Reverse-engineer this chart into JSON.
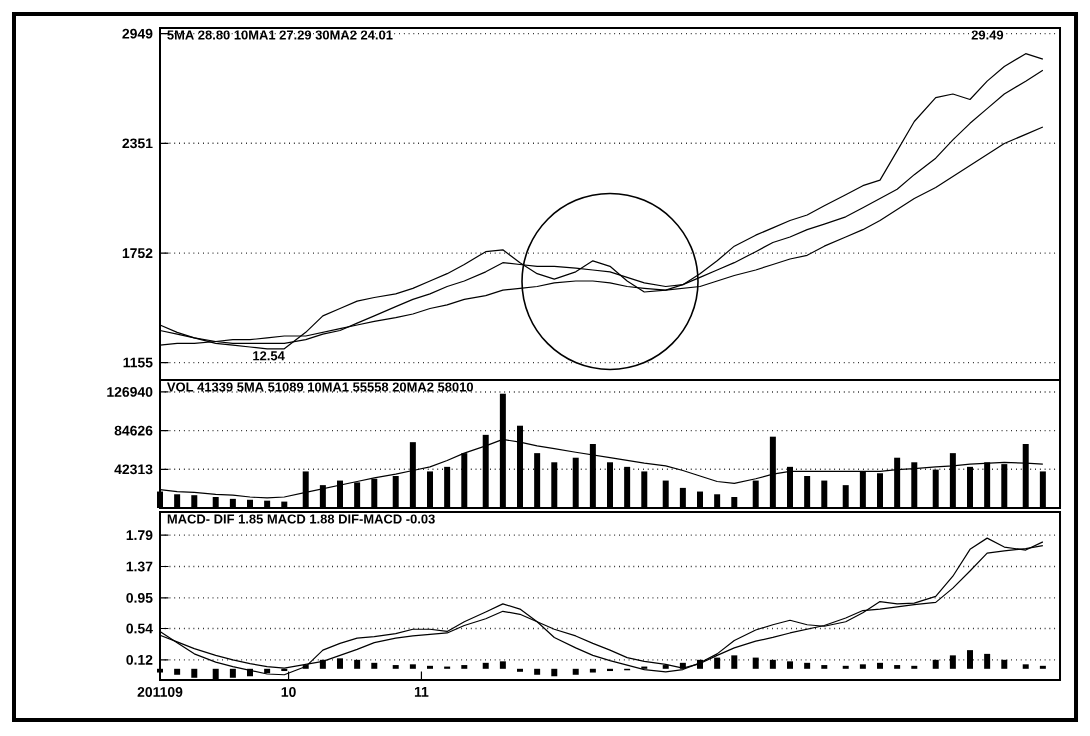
{
  "chart_data": [
    {
      "type": "line",
      "xlim": [
        "2011-09-01",
        "2012-03-29"
      ],
      "ylim": [
        1060,
        2980
      ],
      "yticks": [
        1155,
        1752,
        2351,
        2949
      ],
      "grid": "y",
      "tick_labels": "y",
      "x": [
        "2011-09-01",
        "2011-09-05",
        "2011-09-09",
        "2011-09-14",
        "2011-09-18",
        "2011-09-22",
        "2011-09-26",
        "2011-09-30",
        "2011-10-05",
        "2011-10-09",
        "2011-10-13",
        "2011-10-17",
        "2011-10-21",
        "2011-10-26",
        "2011-10-30",
        "2011-11-03",
        "2011-11-07",
        "2011-11-11",
        "2011-11-16",
        "2011-11-20",
        "2011-11-24",
        "2011-11-28",
        "2011-12-02",
        "2011-12-07",
        "2011-12-11",
        "2011-12-15",
        "2011-12-19",
        "2011-12-23",
        "2011-12-28",
        "2012-01-01",
        "2012-01-05",
        "2012-01-09",
        "2012-01-13",
        "2012-01-18",
        "2012-01-22",
        "2012-01-26",
        "2012-01-30",
        "2012-02-03",
        "2012-02-08",
        "2012-02-12",
        "2012-02-16",
        "2012-02-20",
        "2012-02-24",
        "2012-02-29",
        "2012-03-04",
        "2012-03-08",
        "2012-03-12",
        "2012-03-16",
        "2012-03-21",
        "2012-03-25"
      ],
      "annotations": [
        "5MA 28.80  10MA1 27.29  30MA2 24.01",
        "29.49",
        {
          "text": "12.54",
          "x": "2011-09-22",
          "y": 1230
        }
      ],
      "series": [
        {
          "color": "#000000",
          "values": [
            1360,
            1320,
            1290,
            1260,
            1250,
            1240,
            1230,
            1230,
            1320,
            1410,
            1450,
            1490,
            1510,
            1530,
            1560,
            1600,
            1640,
            1690,
            1760,
            1770,
            1700,
            1640,
            1610,
            1650,
            1710,
            1680,
            1600,
            1540,
            1550,
            1580,
            1640,
            1710,
            1790,
            1850,
            1890,
            1930,
            1960,
            2010,
            2070,
            2120,
            2150,
            2310,
            2470,
            2600,
            2620,
            2590,
            2690,
            2770,
            2840,
            2810
          ]
        },
        {
          "color": "#000000",
          "values": [
            1330,
            1310,
            1290,
            1270,
            1260,
            1260,
            1260,
            1260,
            1280,
            1310,
            1330,
            1370,
            1410,
            1460,
            1500,
            1530,
            1570,
            1600,
            1650,
            1700,
            1690,
            1680,
            1680,
            1670,
            1660,
            1650,
            1620,
            1590,
            1570,
            1580,
            1620,
            1660,
            1700,
            1760,
            1810,
            1840,
            1880,
            1910,
            1950,
            2000,
            2050,
            2100,
            2180,
            2270,
            2370,
            2460,
            2540,
            2620,
            2690,
            2750
          ]
        },
        {
          "color": "#000000",
          "values": [
            1250,
            1260,
            1260,
            1270,
            1280,
            1280,
            1290,
            1300,
            1300,
            1320,
            1340,
            1360,
            1380,
            1400,
            1420,
            1450,
            1470,
            1500,
            1520,
            1550,
            1560,
            1570,
            1590,
            1600,
            1600,
            1590,
            1570,
            1560,
            1550,
            1560,
            1570,
            1600,
            1630,
            1660,
            1690,
            1720,
            1740,
            1790,
            1840,
            1880,
            1930,
            1990,
            2050,
            2110,
            2170,
            2230,
            2290,
            2350,
            2400,
            2440
          ]
        }
      ]
    },
    {
      "type": "bar",
      "xlim": [
        "2011-09-01",
        "2012-03-29"
      ],
      "ylim": [
        0,
        140000
      ],
      "yticks": [
        42313,
        84626,
        126940
      ],
      "grid": "y",
      "tick_labels": "y",
      "x": [
        "2011-09-01",
        "2011-09-05",
        "2011-09-09",
        "2011-09-14",
        "2011-09-18",
        "2011-09-22",
        "2011-09-26",
        "2011-09-30",
        "2011-10-05",
        "2011-10-09",
        "2011-10-13",
        "2011-10-17",
        "2011-10-21",
        "2011-10-26",
        "2011-10-30",
        "2011-11-03",
        "2011-11-07",
        "2011-11-11",
        "2011-11-16",
        "2011-11-20",
        "2011-11-24",
        "2011-11-28",
        "2011-12-02",
        "2011-12-07",
        "2011-12-11",
        "2011-12-15",
        "2011-12-19",
        "2011-12-23",
        "2011-12-28",
        "2012-01-01",
        "2012-01-05",
        "2012-01-09",
        "2012-01-13",
        "2012-01-18",
        "2012-01-22",
        "2012-01-26",
        "2012-01-30",
        "2012-02-03",
        "2012-02-08",
        "2012-02-12",
        "2012-02-16",
        "2012-02-20",
        "2012-02-24",
        "2012-02-29",
        "2012-03-04",
        "2012-03-08",
        "2012-03-12",
        "2012-03-16",
        "2012-03-21",
        "2012-03-25"
      ],
      "annotations": [
        "VOL 41339  5MA 51089  10MA1 55558  20MA2 58010"
      ],
      "series": [
        {
          "color": "#000000",
          "values": [
            18000,
            15000,
            14000,
            12000,
            10000,
            9000,
            8000,
            7000,
            40000,
            25000,
            30000,
            28000,
            32000,
            35000,
            72000,
            40000,
            45000,
            60000,
            80000,
            125000,
            90000,
            60000,
            50000,
            55000,
            70000,
            50000,
            45000,
            40000,
            30000,
            22000,
            18000,
            15000,
            12000,
            30000,
            78000,
            45000,
            35000,
            30000,
            25000,
            40000,
            38000,
            55000,
            50000,
            42000,
            60000,
            45000,
            50000,
            48000,
            70000,
            40000
          ]
        },
        {
          "type": "line",
          "color": "#000000",
          "values": [
            20000,
            18000,
            17000,
            15000,
            14000,
            12000,
            11000,
            12000,
            17000,
            21000,
            25000,
            29000,
            33000,
            37000,
            41000,
            45000,
            52000,
            60000,
            68000,
            75000,
            72000,
            68000,
            65000,
            61000,
            58000,
            55000,
            52000,
            49000,
            46000,
            41000,
            35000,
            29000,
            27000,
            32000,
            37000,
            40000,
            40000,
            40000,
            40000,
            40000,
            40000,
            42000,
            43000,
            45000,
            46000,
            48000,
            49000,
            50000,
            49000,
            48000
          ]
        }
      ]
    },
    {
      "type": "line",
      "xlim": [
        "2011-09-01",
        "2012-03-29"
      ],
      "ylim": [
        -0.15,
        2.1
      ],
      "yticks": [
        0.12,
        0.54,
        0.95,
        1.37,
        1.79
      ],
      "grid": "y",
      "xticks": [
        {
          "value": "2011-09-01",
          "label": "201109"
        },
        {
          "value": "2011-10-01",
          "label": "10"
        },
        {
          "value": "2011-11-01",
          "label": "11"
        }
      ],
      "x": [
        "2011-09-01",
        "2011-09-05",
        "2011-09-09",
        "2011-09-14",
        "2011-09-18",
        "2011-09-22",
        "2011-09-26",
        "2011-09-30",
        "2011-10-05",
        "2011-10-09",
        "2011-10-13",
        "2011-10-17",
        "2011-10-21",
        "2011-10-26",
        "2011-10-30",
        "2011-11-03",
        "2011-11-07",
        "2011-11-11",
        "2011-11-16",
        "2011-11-20",
        "2011-11-24",
        "2011-11-28",
        "2011-12-02",
        "2011-12-07",
        "2011-12-11",
        "2011-12-15",
        "2011-12-19",
        "2011-12-23",
        "2011-12-28",
        "2012-01-01",
        "2012-01-05",
        "2012-01-09",
        "2012-01-13",
        "2012-01-18",
        "2012-01-22",
        "2012-01-26",
        "2012-01-30",
        "2012-02-03",
        "2012-02-08",
        "2012-02-12",
        "2012-02-16",
        "2012-02-20",
        "2012-02-24",
        "2012-02-29",
        "2012-03-04",
        "2012-03-08",
        "2012-03-12",
        "2012-03-16",
        "2012-03-21",
        "2012-03-25"
      ],
      "annotations": [
        "MACD- DIF 1.85  MACD 1.88  DIF-MACD -0.03"
      ],
      "series": [
        {
          "color": "#000000",
          "values": [
            0.5,
            0.35,
            0.2,
            0.09,
            0.03,
            -0.02,
            -0.07,
            -0.08,
            0.03,
            0.25,
            0.34,
            0.41,
            0.43,
            0.47,
            0.53,
            0.53,
            0.5,
            0.63,
            0.76,
            0.87,
            0.8,
            0.63,
            0.42,
            0.28,
            0.18,
            0.11,
            0.05,
            -0.01,
            -0.04,
            -0.01,
            0.08,
            0.2,
            0.38,
            0.52,
            0.59,
            0.65,
            0.59,
            0.57,
            0.63,
            0.75,
            0.9,
            0.87,
            0.88,
            0.97,
            1.24,
            1.6,
            1.75,
            1.63,
            1.59,
            1.7
          ]
        },
        {
          "color": "#000000",
          "values": [
            0.45,
            0.36,
            0.27,
            0.18,
            0.12,
            0.07,
            0.03,
            0.01,
            0.06,
            0.1,
            0.18,
            0.26,
            0.35,
            0.41,
            0.44,
            0.46,
            0.48,
            0.58,
            0.67,
            0.77,
            0.73,
            0.63,
            0.53,
            0.44,
            0.34,
            0.25,
            0.15,
            0.1,
            0.06,
            0.01,
            0.07,
            0.18,
            0.28,
            0.37,
            0.42,
            0.48,
            0.53,
            0.58,
            0.68,
            0.78,
            0.8,
            0.83,
            0.86,
            0.89,
            1.08,
            1.31,
            1.55,
            1.58,
            1.61,
            1.65
          ]
        },
        {
          "type": "bar",
          "color": "#000000",
          "values": [
            -0.05,
            -0.08,
            -0.12,
            -0.15,
            -0.12,
            -0.1,
            -0.06,
            -0.03,
            0.05,
            0.12,
            0.14,
            0.12,
            0.08,
            0.05,
            0.06,
            0.04,
            0.03,
            0.05,
            0.08,
            0.1,
            -0.04,
            -0.08,
            -0.1,
            -0.08,
            -0.05,
            -0.03,
            -0.02,
            0.03,
            0.05,
            0.08,
            0.12,
            0.15,
            0.18,
            0.15,
            0.12,
            0.1,
            0.08,
            0.05,
            0.04,
            0.06,
            0.08,
            0.05,
            0.04,
            0.12,
            0.18,
            0.25,
            0.2,
            0.12,
            0.06,
            0.04
          ]
        }
      ]
    }
  ]
}
